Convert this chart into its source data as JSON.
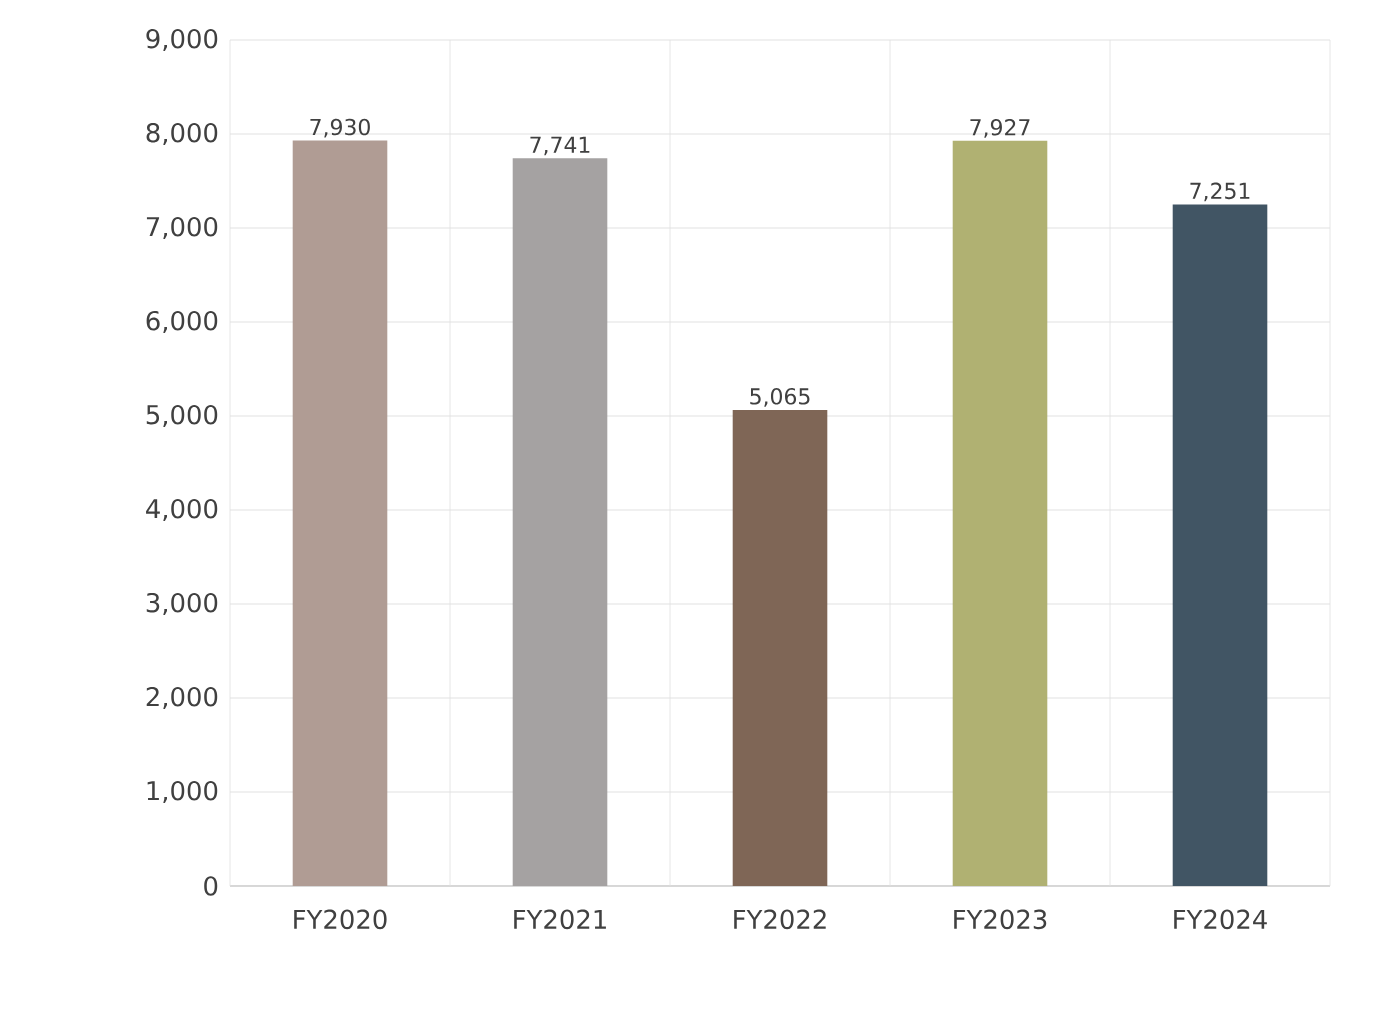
{
  "chart_data": {
    "type": "bar",
    "categories": [
      "FY2020",
      "FY2021",
      "FY2022",
      "FY2023",
      "FY2024"
    ],
    "values": [
      7930,
      7741,
      5065,
      7927,
      7251
    ],
    "colors": [
      "#b09c94",
      "#a5a2a2",
      "#7f6656",
      "#b0b172",
      "#415564"
    ],
    "ylim": [
      0,
      9000
    ],
    "yticks": [
      {
        "value": 0,
        "label": "0"
      },
      {
        "value": 1000,
        "label": "1,000"
      },
      {
        "value": 2000,
        "label": "2,000"
      },
      {
        "value": 3000,
        "label": "3,000"
      },
      {
        "value": 4000,
        "label": "4,000"
      },
      {
        "value": 5000,
        "label": "5,000"
      },
      {
        "value": 6000,
        "label": "6,000"
      },
      {
        "value": 7000,
        "label": "7,000"
      },
      {
        "value": 8000,
        "label": "8,000"
      },
      {
        "value": 9000,
        "label": "9,000"
      }
    ],
    "value_labels": [
      "7,930",
      "7,741",
      "5,065",
      "7,927",
      "7,251"
    ],
    "grid": true
  }
}
